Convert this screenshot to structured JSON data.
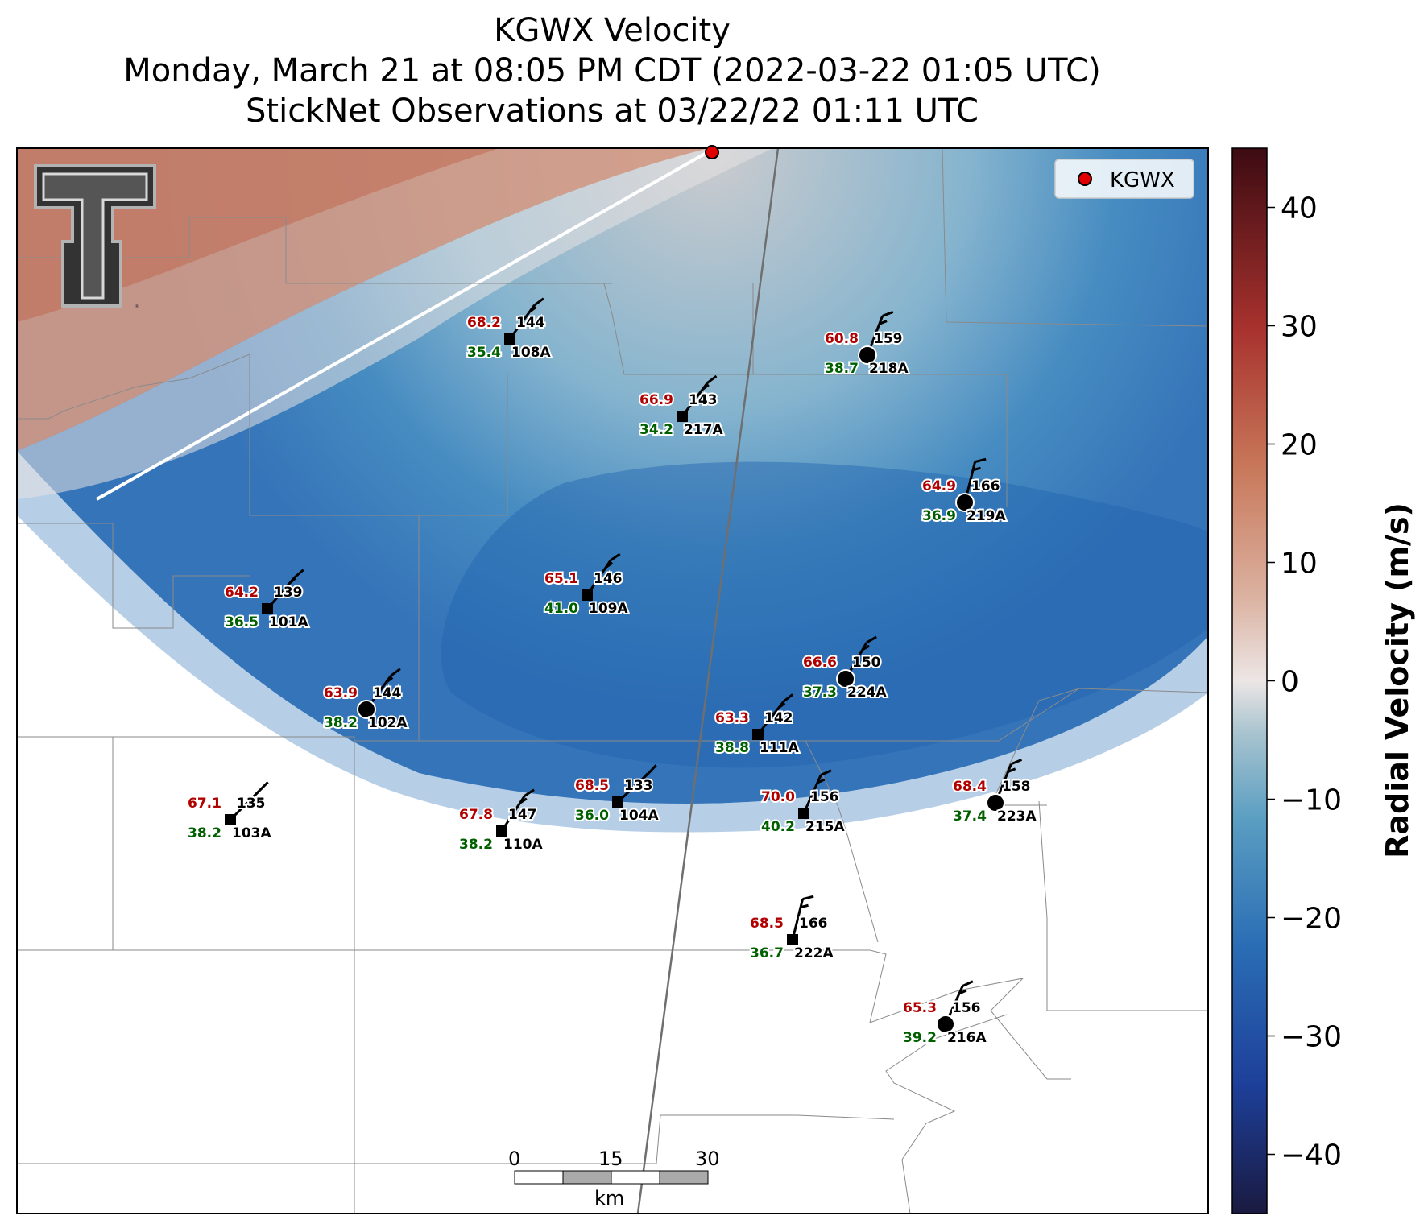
{
  "title": {
    "line1": "KGWX Velocity",
    "line2": "Monday, March 21 at 08:05 PM CDT (2022-03-22 01:05 UTC)",
    "line3": "StickNet Observations at 03/22/22 01:11 UTC"
  },
  "legend": {
    "label": "KGWX",
    "marker_color": "#e00000"
  },
  "logo": {
    "text": "T",
    "icon": "texas-tech-double-t-logo"
  },
  "colorbar": {
    "label": "Radial Velocity (m/s)",
    "ticks": [
      "40",
      "30",
      "20",
      "10",
      "0",
      "−10",
      "−20",
      "−30",
      "−40"
    ],
    "tick_values": [
      40,
      30,
      20,
      10,
      0,
      -10,
      -20,
      -30,
      -40
    ],
    "range": [
      -45,
      45
    ],
    "colors": [
      "#1a1a40",
      "#1d4fa8",
      "#2a6db5",
      "#4a90bf",
      "#8fb5c7",
      "#e9e4e2",
      "#d9a58e",
      "#c66b4e",
      "#a82a2a",
      "#4a0f14"
    ]
  },
  "scalebar": {
    "ticks": [
      "0",
      "15",
      "30"
    ],
    "unit": "km"
  },
  "stations": [
    {
      "id": "108A",
      "temp": "68.2",
      "dew": "35.4",
      "dir": "144",
      "marker": "square"
    },
    {
      "id": "218A",
      "temp": "60.8",
      "dew": "38.7",
      "dir": "159",
      "marker": "circle"
    },
    {
      "id": "217A",
      "temp": "66.9",
      "dew": "34.2",
      "dir": "143",
      "marker": "square"
    },
    {
      "id": "219A",
      "temp": "64.9",
      "dew": "36.9",
      "dir": "166",
      "marker": "circle"
    },
    {
      "id": "101A",
      "temp": "64.2",
      "dew": "36.5",
      "dir": "139",
      "marker": "square"
    },
    {
      "id": "109A",
      "temp": "65.1",
      "dew": "41.0",
      "dir": "146",
      "marker": "square"
    },
    {
      "id": "224A",
      "temp": "66.6",
      "dew": "37.3",
      "dir": "150",
      "marker": "circle"
    },
    {
      "id": "102A",
      "temp": "63.9",
      "dew": "38.2",
      "dir": "144",
      "marker": "circle"
    },
    {
      "id": "111A",
      "temp": "63.3",
      "dew": "38.8",
      "dir": "142",
      "marker": "square"
    },
    {
      "id": "103A",
      "temp": "67.1",
      "dew": "38.2",
      "dir": "135",
      "marker": "square"
    },
    {
      "id": "104A",
      "temp": "68.5",
      "dew": "36.0",
      "dir": "133",
      "marker": "square"
    },
    {
      "id": "110A",
      "temp": "67.8",
      "dew": "38.2",
      "dir": "147",
      "marker": "square"
    },
    {
      "id": "215A",
      "temp": "70.0",
      "dew": "40.2",
      "dir": "156",
      "marker": "square"
    },
    {
      "id": "223A",
      "temp": "68.4",
      "dew": "37.4",
      "dir": "158",
      "marker": "circle"
    },
    {
      "id": "222A",
      "temp": "68.5",
      "dew": "36.7",
      "dir": "166",
      "marker": "square"
    },
    {
      "id": "216A",
      "temp": "65.3",
      "dew": "39.2",
      "dir": "156",
      "marker": "circle"
    }
  ]
}
